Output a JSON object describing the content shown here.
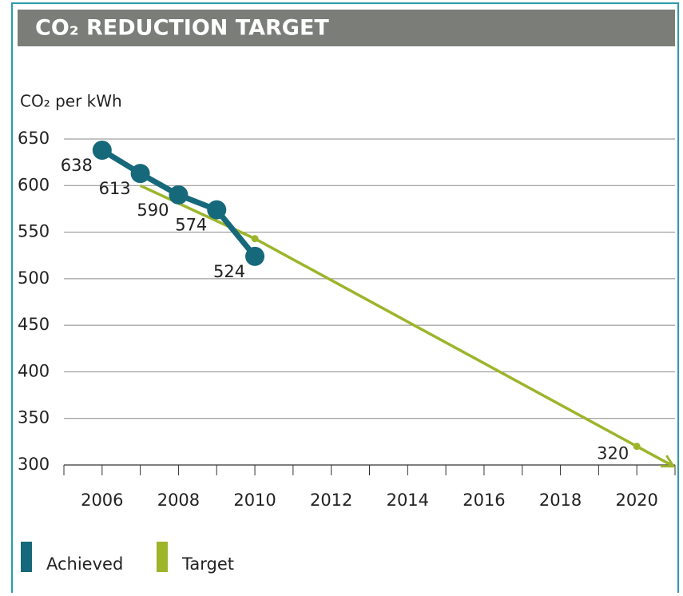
{
  "chart_data": {
    "type": "line",
    "title": "CO₂ REDUCTION TARGET",
    "y_label": "CO₂ per kWh",
    "xlim": [
      2005,
      2021
    ],
    "xticks": [
      2006,
      2008,
      2010,
      2012,
      2014,
      2016,
      2018,
      2020
    ],
    "xminor_ticks": [
      2005,
      2007,
      2009,
      2011,
      2013,
      2015,
      2017,
      2019,
      2021
    ],
    "ylim": [
      300,
      650
    ],
    "yticks": [
      300,
      350,
      400,
      450,
      500,
      550,
      600,
      650
    ],
    "grid": true,
    "legend": "bottom-left",
    "series": [
      {
        "name": "Achieved",
        "color": "#16697a",
        "x": [
          2006,
          2007,
          2008,
          2009,
          2010
        ],
        "values": [
          638,
          613,
          590,
          574,
          524
        ]
      },
      {
        "name": "Target",
        "color": "#9cb52b",
        "x": [
          2007,
          2010,
          2020
        ],
        "values": [
          600,
          543,
          320
        ],
        "value_labels": [
          null,
          null,
          "320"
        ]
      }
    ]
  }
}
